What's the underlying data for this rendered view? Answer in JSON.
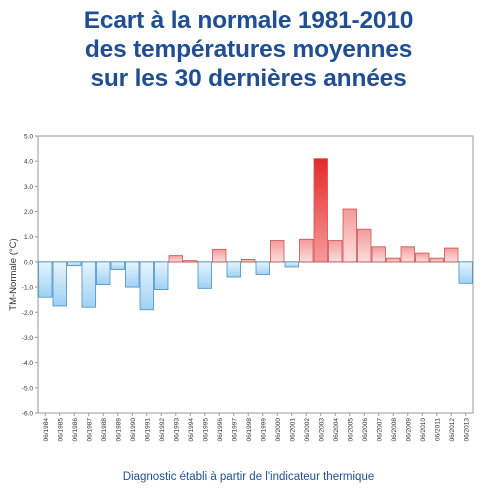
{
  "title": {
    "line1": "Ecart à la normale 1981-2010",
    "line2": "des températures moyennes",
    "line3": "sur les 30 dernières années"
  },
  "caption": "Diagnostic établi à partir de l'indicateur thermique",
  "colors": {
    "title": "#1f4e93",
    "positive_fill": "#f7b5b5",
    "positive_stroke": "#d05252",
    "negative_fill": "#bfe0f7",
    "negative_stroke": "#4a8fc4",
    "peak_fill": "#e42a2a"
  },
  "chart_data": {
    "type": "bar",
    "ylabel": "TM-Normale (°C)",
    "xlabel": "",
    "ylim": [
      -6.0,
      5.0
    ],
    "yticks": [
      "5.0",
      "4.0",
      "3.0",
      "2.0",
      "1.0",
      "0.0",
      "-1.0",
      "-2.0",
      "-3.0",
      "-4.0",
      "-5.0",
      "-6.0"
    ],
    "grid": false,
    "categories": [
      "06/1984",
      "06/1985",
      "06/1986",
      "06/1987",
      "06/1988",
      "06/1989",
      "06/1990",
      "06/1991",
      "06/1992",
      "06/1993",
      "06/1994",
      "06/1995",
      "06/1996",
      "06/1997",
      "06/1998",
      "06/1999",
      "06/2000",
      "06/2001",
      "06/2002",
      "06/2003",
      "06/2004",
      "06/2005",
      "06/2006",
      "06/2007",
      "06/2008",
      "06/2009",
      "06/2010",
      "06/2011",
      "06/2012",
      "06/2013"
    ],
    "values": [
      -1.4,
      -1.75,
      -0.15,
      -1.8,
      -0.9,
      -0.3,
      -1.0,
      -1.9,
      -1.1,
      0.25,
      0.05,
      -1.05,
      0.5,
      -0.6,
      0.1,
      -0.5,
      0.85,
      -0.2,
      0.9,
      4.1,
      0.85,
      2.1,
      1.3,
      0.6,
      0.15,
      0.6,
      0.35,
      0.15,
      0.55,
      -0.85
    ]
  }
}
